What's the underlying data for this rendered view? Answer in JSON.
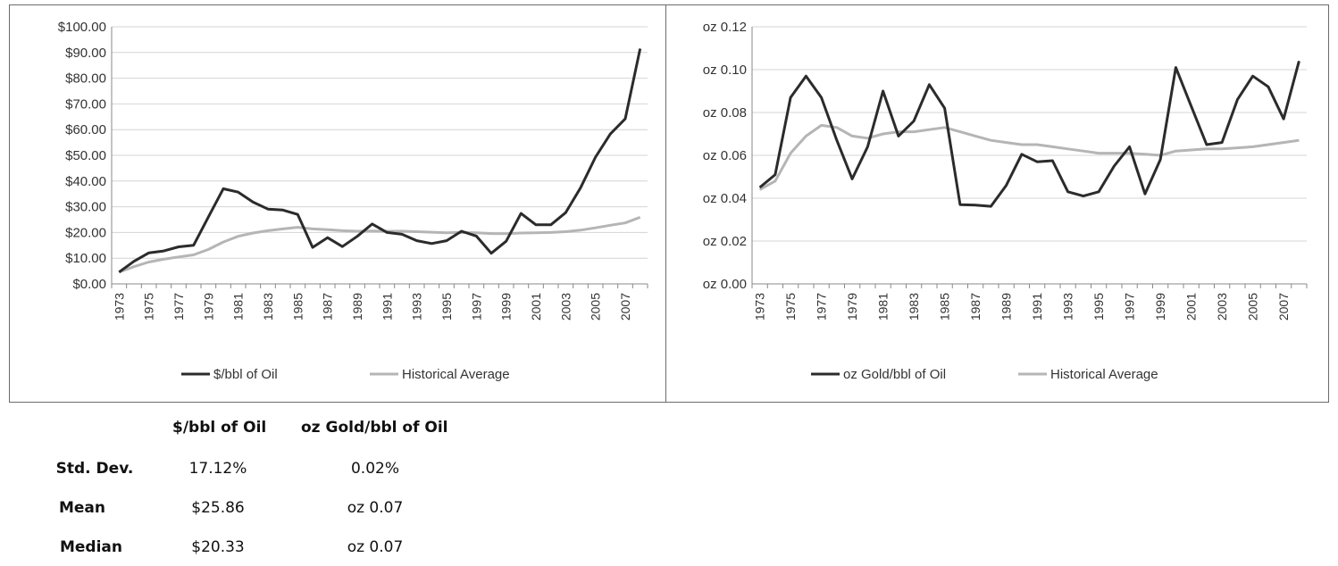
{
  "chart_data": [
    {
      "type": "line",
      "x": [
        1973,
        1974,
        1975,
        1976,
        1977,
        1978,
        1979,
        1980,
        1981,
        1982,
        1983,
        1984,
        1985,
        1986,
        1987,
        1988,
        1989,
        1990,
        1991,
        1992,
        1993,
        1994,
        1995,
        1996,
        1997,
        1998,
        1999,
        2000,
        2001,
        2002,
        2003,
        2004,
        2005,
        2006,
        2007,
        2008
      ],
      "tick_labels": [
        "1973",
        "1975",
        "1977",
        "1979",
        "1981",
        "1983",
        "1985",
        "1987",
        "1989",
        "1991",
        "1993",
        "1995",
        "1997",
        "1999",
        "2001",
        "2003",
        "2005",
        "2007"
      ],
      "ylim": [
        0,
        100
      ],
      "y_tick_labels": [
        "$0.00",
        "$10.00",
        "$20.00",
        "$30.00",
        "$40.00",
        "$50.00",
        "$60.00",
        "$70.00",
        "$80.00",
        "$90.00",
        "$100.00"
      ],
      "grid": true,
      "legend_position": "bottom",
      "series": [
        {
          "name": "$/bbl of Oil",
          "color": "#2b2b2b",
          "values": [
            4.6,
            8.8,
            12.1,
            12.8,
            14.4,
            15.0,
            26.0,
            37.0,
            35.7,
            31.8,
            29.1,
            28.7,
            27.0,
            14.2,
            18.0,
            14.5,
            18.5,
            23.3,
            20.0,
            19.3,
            16.8,
            15.7,
            16.8,
            20.5,
            18.6,
            11.9,
            16.6,
            27.4,
            23.0,
            23.0,
            27.7,
            37.4,
            49.3,
            58.3,
            64.2,
            91.5
          ]
        },
        {
          "name": "Historical Average",
          "color": "#b5b5b5",
          "values": [
            4.6,
            6.7,
            8.5,
            9.6,
            10.5,
            11.3,
            13.4,
            16.3,
            18.5,
            19.8,
            20.7,
            21.4,
            22.0,
            21.4,
            21.1,
            20.7,
            20.5,
            20.6,
            20.5,
            20.5,
            20.3,
            20.1,
            19.9,
            20.0,
            19.9,
            19.6,
            19.5,
            19.8,
            19.9,
            20.0,
            20.3,
            20.9,
            21.8,
            22.8,
            23.7,
            25.9
          ]
        }
      ]
    },
    {
      "type": "line",
      "x": [
        1973,
        1974,
        1975,
        1976,
        1977,
        1978,
        1979,
        1980,
        1981,
        1982,
        1983,
        1984,
        1985,
        1986,
        1987,
        1988,
        1989,
        1990,
        1991,
        1992,
        1993,
        1994,
        1995,
        1996,
        1997,
        1998,
        1999,
        2000,
        2001,
        2002,
        2003,
        2004,
        2005,
        2006,
        2007,
        2008
      ],
      "tick_labels": [
        "1973",
        "1975",
        "1977",
        "1979",
        "1981",
        "1983",
        "1985",
        "1987",
        "1989",
        "1991",
        "1993",
        "1995",
        "1997",
        "1999",
        "2001",
        "2003",
        "2005",
        "2007"
      ],
      "ylim": [
        0,
        0.12
      ],
      "y_tick_labels": [
        "oz 0.00",
        "oz 0.02",
        "oz 0.04",
        "oz 0.06",
        "oz 0.08",
        "oz 0.10",
        "oz 0.12"
      ],
      "grid": true,
      "legend_position": "bottom",
      "series": [
        {
          "name": "oz Gold/bbl of Oil",
          "color": "#2b2b2b",
          "values": [
            0.045,
            0.051,
            0.087,
            0.097,
            0.087,
            0.067,
            0.049,
            0.064,
            0.09,
            0.069,
            0.076,
            0.093,
            0.082,
            0.037,
            0.0368,
            0.0362,
            0.046,
            0.0605,
            0.057,
            0.0575,
            0.043,
            0.041,
            0.043,
            0.055,
            0.064,
            0.042,
            0.058,
            0.101,
            0.083,
            0.065,
            0.066,
            0.086,
            0.097,
            0.092,
            0.077,
            0.104
          ]
        },
        {
          "name": "Historical Average",
          "color": "#b5b5b5",
          "values": [
            0.044,
            0.048,
            0.061,
            0.069,
            0.074,
            0.073,
            0.069,
            0.068,
            0.07,
            0.071,
            0.071,
            0.072,
            0.073,
            0.071,
            0.069,
            0.067,
            0.066,
            0.065,
            0.065,
            0.064,
            0.063,
            0.062,
            0.061,
            0.061,
            0.061,
            0.0605,
            0.06,
            0.062,
            0.0625,
            0.063,
            0.063,
            0.0635,
            0.064,
            0.065,
            0.066,
            0.067
          ]
        }
      ]
    }
  ],
  "stats": {
    "headers": [
      "$/bbl of Oil",
      "oz Gold/bbl  of Oil"
    ],
    "rows": [
      {
        "label": "Std. Dev.",
        "values": [
          "17.12%",
          "0.02%"
        ]
      },
      {
        "label": "Mean",
        "values": [
          "$25.86",
          "oz 0.07"
        ]
      },
      {
        "label": "Median",
        "values": [
          "$20.33",
          "oz 0.07"
        ]
      }
    ]
  }
}
